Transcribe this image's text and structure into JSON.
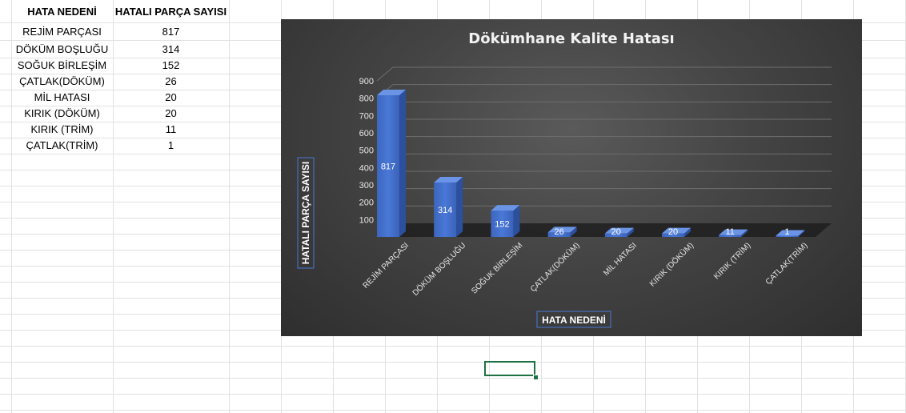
{
  "table": {
    "headers": [
      "HATA NEDENİ",
      "HATALI PARÇA SAYISI"
    ],
    "rows": [
      {
        "cause": "REJİM PARÇASI",
        "count": "817"
      },
      {
        "cause": "DÖKÜM BOŞLUĞU",
        "count": "314"
      },
      {
        "cause": "SOĞUK BİRLEŞİM",
        "count": "152"
      },
      {
        "cause": "ÇATLAK(DÖKÜM)",
        "count": "26"
      },
      {
        "cause": "MİL HATASI",
        "count": "20"
      },
      {
        "cause": "KIRIK (DÖKÜM)",
        "count": "20"
      },
      {
        "cause": "KIRIK (TRİM)",
        "count": "11"
      },
      {
        "cause": "ÇATLAK(TRİM)",
        "count": "1"
      }
    ]
  },
  "chart_data": {
    "type": "bar",
    "title": "Dökümhane Kalite Hatası",
    "xlabel": "HATA NEDENİ",
    "ylabel": "HATALI PARÇA SAYISI",
    "categories": [
      "REJİM PARÇASI",
      "DÖKÜM BOŞLUĞU",
      "SOĞUK BİRLEŞİM",
      "ÇATLAK(DÖKÜM)",
      "MİL HATASI",
      "KIRIK (DÖKÜM)",
      "KIRIK (TRİM)",
      "ÇATLAK(TRİM)"
    ],
    "values": [
      817,
      314,
      152,
      26,
      20,
      20,
      11,
      1
    ],
    "ylim": [
      0,
      900
    ],
    "yticks": [
      "100",
      "200",
      "300",
      "400",
      "500",
      "600",
      "700",
      "800",
      "900"
    ],
    "grid": true,
    "style": "3d-column",
    "bar_color": "#4472c4",
    "background": "#3a3a3a"
  }
}
